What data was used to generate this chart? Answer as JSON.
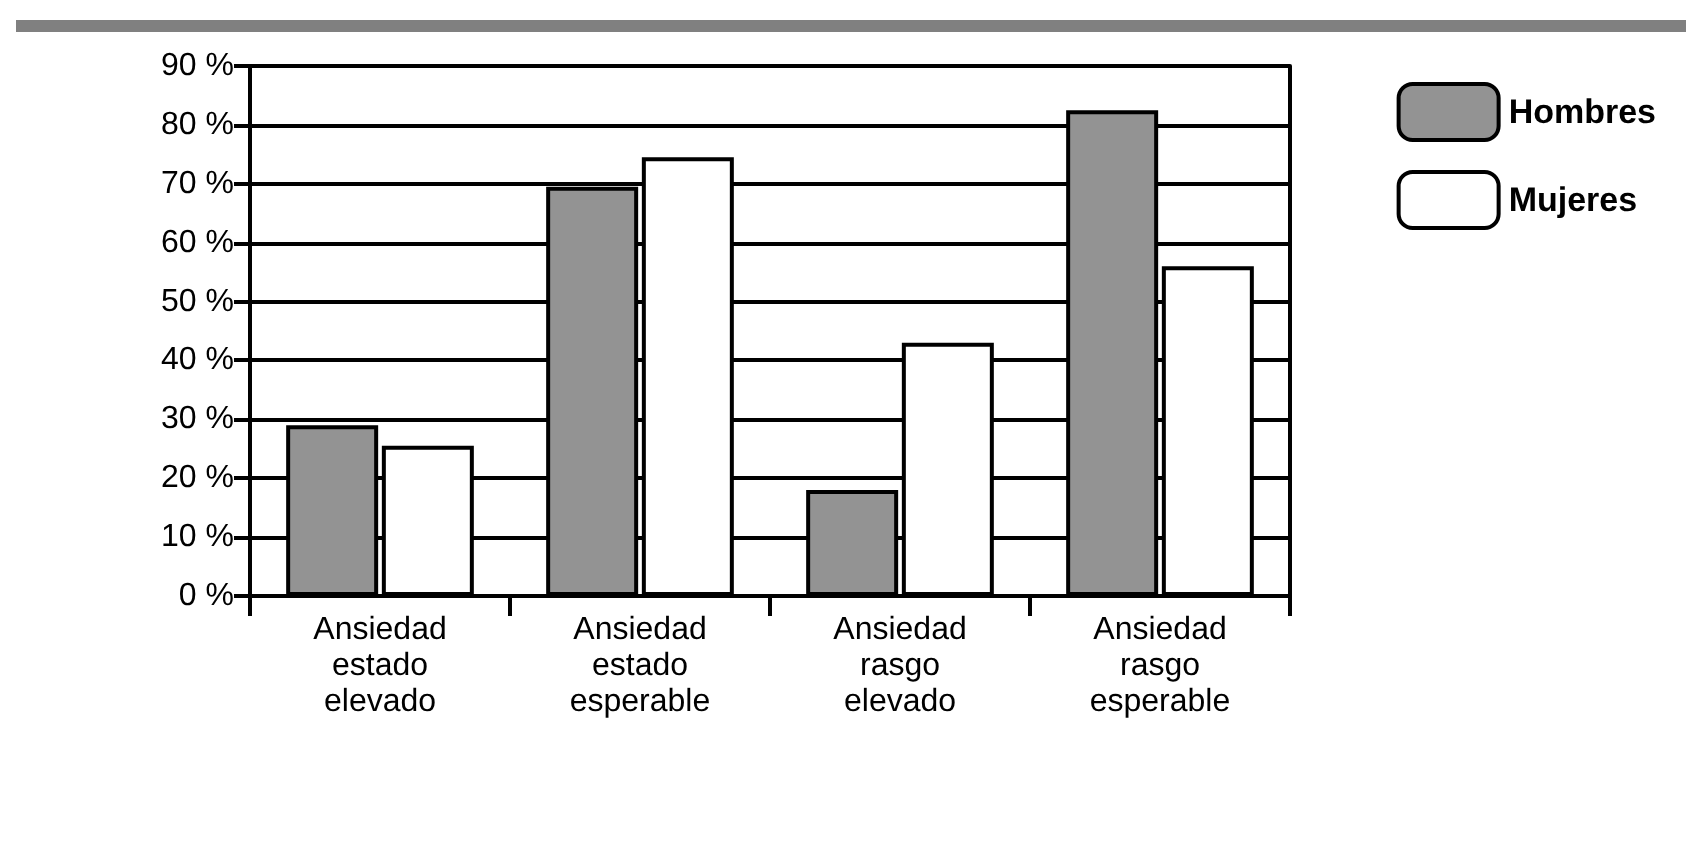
{
  "chart_data": {
    "type": "bar",
    "categories": [
      "Ansiedad\nestado\nelevado",
      "Ansiedad\nestado\nesperable",
      "Ansiedad\nrasgo\nelevado",
      "Ansiedad\nrasgo\nesperable"
    ],
    "series": [
      {
        "name": "Hombres",
        "color": "#939393",
        "values": [
          29,
          69.5,
          18,
          82.5
        ]
      },
      {
        "name": "Mujeres",
        "color": "#ffffff",
        "values": [
          25.5,
          74.5,
          43,
          56
        ]
      }
    ],
    "ylim": [
      0,
      90
    ],
    "yticks": [
      {
        "value": 0,
        "label": "0 %"
      },
      {
        "value": 10,
        "label": "10 %"
      },
      {
        "value": 20,
        "label": "20 %"
      },
      {
        "value": 30,
        "label": "30 %"
      },
      {
        "value": 40,
        "label": "40 %"
      },
      {
        "value": 50,
        "label": "50 %"
      },
      {
        "value": 60,
        "label": "60 %"
      },
      {
        "value": 70,
        "label": "70 %"
      },
      {
        "value": 80,
        "label": "80 %"
      },
      {
        "value": 90,
        "label": "90 %"
      }
    ],
    "grid": "y",
    "legend": "top right"
  }
}
